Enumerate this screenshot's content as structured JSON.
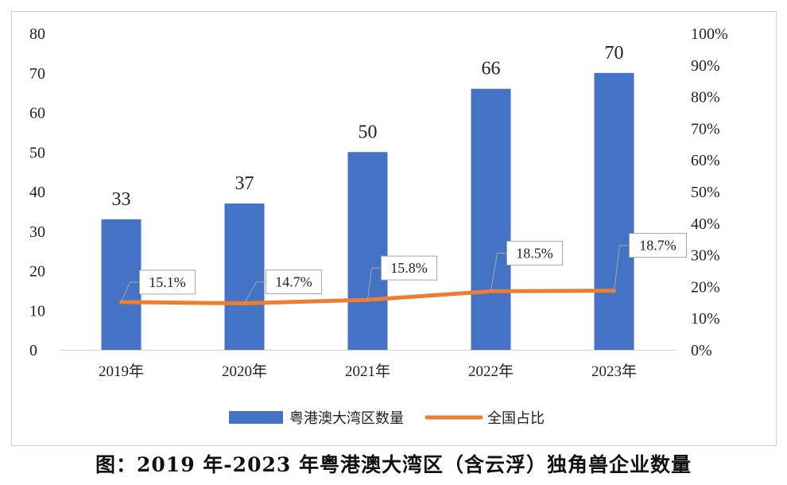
{
  "chart_data": {
    "type": "bar",
    "categories": [
      "2019年",
      "2020年",
      "2021年",
      "2022年",
      "2023年"
    ],
    "series": [
      {
        "name": "粤港澳大湾区数量",
        "type": "bar",
        "axis": "left",
        "values": [
          33,
          37,
          50,
          66,
          70
        ],
        "color": "#4472C4"
      },
      {
        "name": "全国占比",
        "type": "line",
        "axis": "right",
        "values": [
          15.1,
          14.7,
          15.8,
          18.5,
          18.7
        ],
        "labels": [
          "15.1%",
          "14.7%",
          "15.8%",
          "18.5%",
          "18.7%"
        ],
        "color": "#ED7D31"
      }
    ],
    "y_left": {
      "ylim": [
        0,
        80
      ],
      "ticks": [
        "0",
        "10",
        "20",
        "30",
        "40",
        "50",
        "60",
        "70",
        "80"
      ]
    },
    "y_right": {
      "ylim": [
        0,
        100
      ],
      "ticks": [
        "0%",
        "10%",
        "20%",
        "30%",
        "40%",
        "50%",
        "60%",
        "70%",
        "80%",
        "90%",
        "100%"
      ]
    },
    "legend_position": "bottom",
    "grid": false
  },
  "caption": "图：2019 年-2023 年粤港澳大湾区（含云浮）独角兽企业数量"
}
